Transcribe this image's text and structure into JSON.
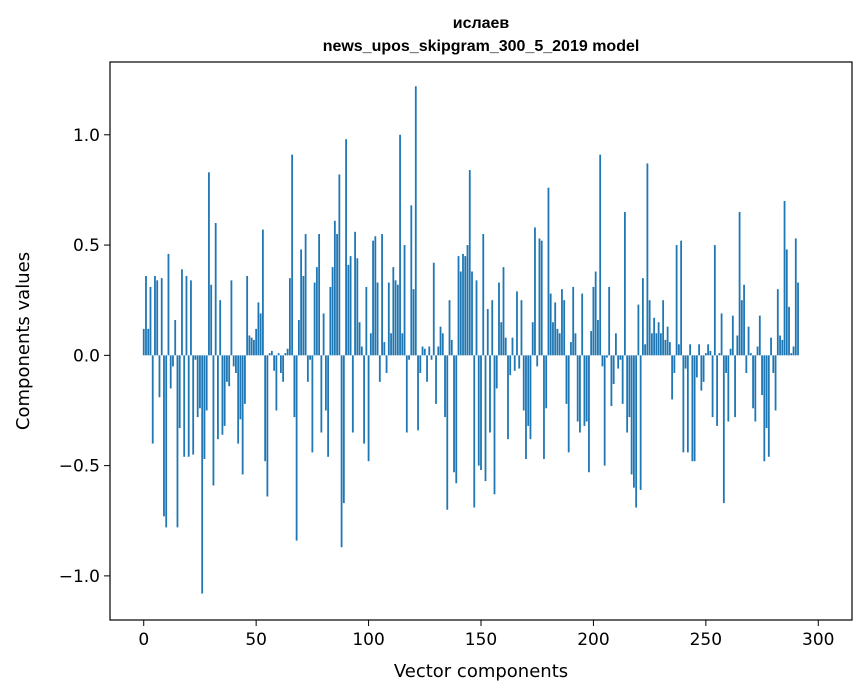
{
  "chart_data": {
    "type": "bar",
    "title": "ислаев",
    "subtitle": "news_upos_skipgram_300_5_2019 model",
    "xlabel": "Vector components",
    "ylabel": "Components values",
    "xlim": [
      -15,
      315
    ],
    "ylim": [
      -1.2,
      1.33
    ],
    "xticks": [
      0,
      50,
      100,
      150,
      200,
      250,
      300
    ],
    "yticks": [
      -1.0,
      -0.5,
      0.0,
      0.5,
      1.0
    ],
    "ytick_labels": [
      "−1.0",
      "−0.5",
      "0.0",
      "0.5",
      "1.0"
    ],
    "grid": false,
    "bar_color": "#1f77b4",
    "x_start": 0,
    "values": [
      0.12,
      0.36,
      0.12,
      0.31,
      -0.4,
      0.36,
      0.34,
      -0.19,
      0.35,
      -0.73,
      -0.78,
      0.46,
      -0.15,
      -0.05,
      0.16,
      -0.78,
      -0.33,
      0.39,
      -0.46,
      0.36,
      -0.46,
      0.34,
      -0.45,
      -0.02,
      -0.28,
      -0.24,
      -1.08,
      -0.47,
      -0.25,
      0.83,
      0.32,
      -0.59,
      0.6,
      -0.38,
      0.25,
      -0.36,
      -0.32,
      -0.12,
      -0.14,
      0.34,
      -0.05,
      -0.08,
      -0.4,
      -0.29,
      -0.54,
      -0.22,
      0.36,
      0.09,
      0.08,
      0.07,
      0.12,
      0.24,
      0.19,
      0.57,
      -0.48,
      -0.64,
      0.01,
      0.02,
      -0.07,
      -0.25,
      0.01,
      -0.08,
      -0.12,
      0.01,
      0.03,
      0.35,
      0.91,
      -0.28,
      -0.84,
      0.16,
      0.48,
      0.36,
      0.55,
      -0.12,
      -0.02,
      -0.44,
      0.33,
      0.4,
      0.55,
      -0.35,
      0.19,
      -0.25,
      -0.46,
      0.31,
      0.4,
      0.61,
      0.55,
      0.82,
      -0.87,
      -0.67,
      0.98,
      0.41,
      0.45,
      -0.35,
      0.56,
      0.44,
      0.15,
      0.04,
      -0.4,
      0.31,
      -0.48,
      0.1,
      0.52,
      0.54,
      0.33,
      -0.12,
      0.55,
      0.06,
      -0.08,
      0.33,
      0.1,
      0.4,
      0.34,
      0.32,
      1.0,
      0.1,
      0.5,
      -0.35,
      -0.02,
      0.68,
      0.3,
      1.22,
      -0.34,
      -0.08,
      0.04,
      0.03,
      -0.12,
      0.04,
      -0.02,
      0.42,
      -0.22,
      0.04,
      0.13,
      0.1,
      -0.28,
      -0.7,
      0.25,
      0.07,
      -0.53,
      -0.58,
      0.45,
      0.38,
      0.46,
      0.45,
      0.5,
      0.84,
      0.38,
      -0.69,
      0.34,
      -0.5,
      -0.52,
      0.55,
      -0.57,
      0.21,
      -0.35,
      0.25,
      -0.63,
      -0.15,
      0.33,
      0.15,
      0.4,
      0.08,
      -0.38,
      -0.09,
      0.08,
      -0.07,
      0.29,
      -0.06,
      0.25,
      -0.25,
      -0.47,
      -0.32,
      -0.38,
      0.15,
      0.58,
      -0.05,
      0.53,
      0.52,
      -0.47,
      -0.24,
      0.76,
      0.28,
      0.15,
      0.24,
      0.12,
      0.1,
      0.3,
      0.25,
      -0.22,
      -0.44,
      0.06,
      0.31,
      0.1,
      -0.3,
      -0.35,
      0.28,
      -0.32,
      -0.3,
      -0.53,
      0.11,
      0.31,
      0.38,
      0.16,
      0.91,
      -0.05,
      -0.5,
      -0.01,
      0.31,
      -0.23,
      -0.13,
      0.1,
      -0.06,
      -0.02,
      -0.22,
      0.65,
      -0.35,
      -0.28,
      -0.54,
      -0.6,
      -0.69,
      0.23,
      -0.61,
      0.35,
      0.05,
      0.87,
      0.25,
      0.1,
      0.17,
      0.1,
      0.15,
      0.1,
      0.25,
      0.07,
      0.13,
      0.06,
      -0.2,
      -0.08,
      0.5,
      0.05,
      0.52,
      -0.44,
      -0.06,
      -0.44,
      0.05,
      -0.48,
      -0.48,
      -0.1,
      0.05,
      -0.16,
      -0.12,
      0.01,
      0.05,
      0.02,
      -0.28,
      0.5,
      -0.32,
      0.01,
      0.19,
      -0.67,
      -0.08,
      -0.3,
      0.03,
      0.18,
      -0.28,
      0.09,
      0.65,
      0.25,
      0.32,
      -0.08,
      0.13,
      0.01,
      -0.24,
      -0.3,
      0.04,
      0.18,
      -0.18,
      -0.48,
      -0.33,
      -0.46,
      0.08,
      -0.08,
      -0.25,
      0.3,
      0.09,
      0.07,
      0.7,
      0.48,
      0.22,
      0.01,
      0.04,
      0.53,
      0.33
    ]
  }
}
